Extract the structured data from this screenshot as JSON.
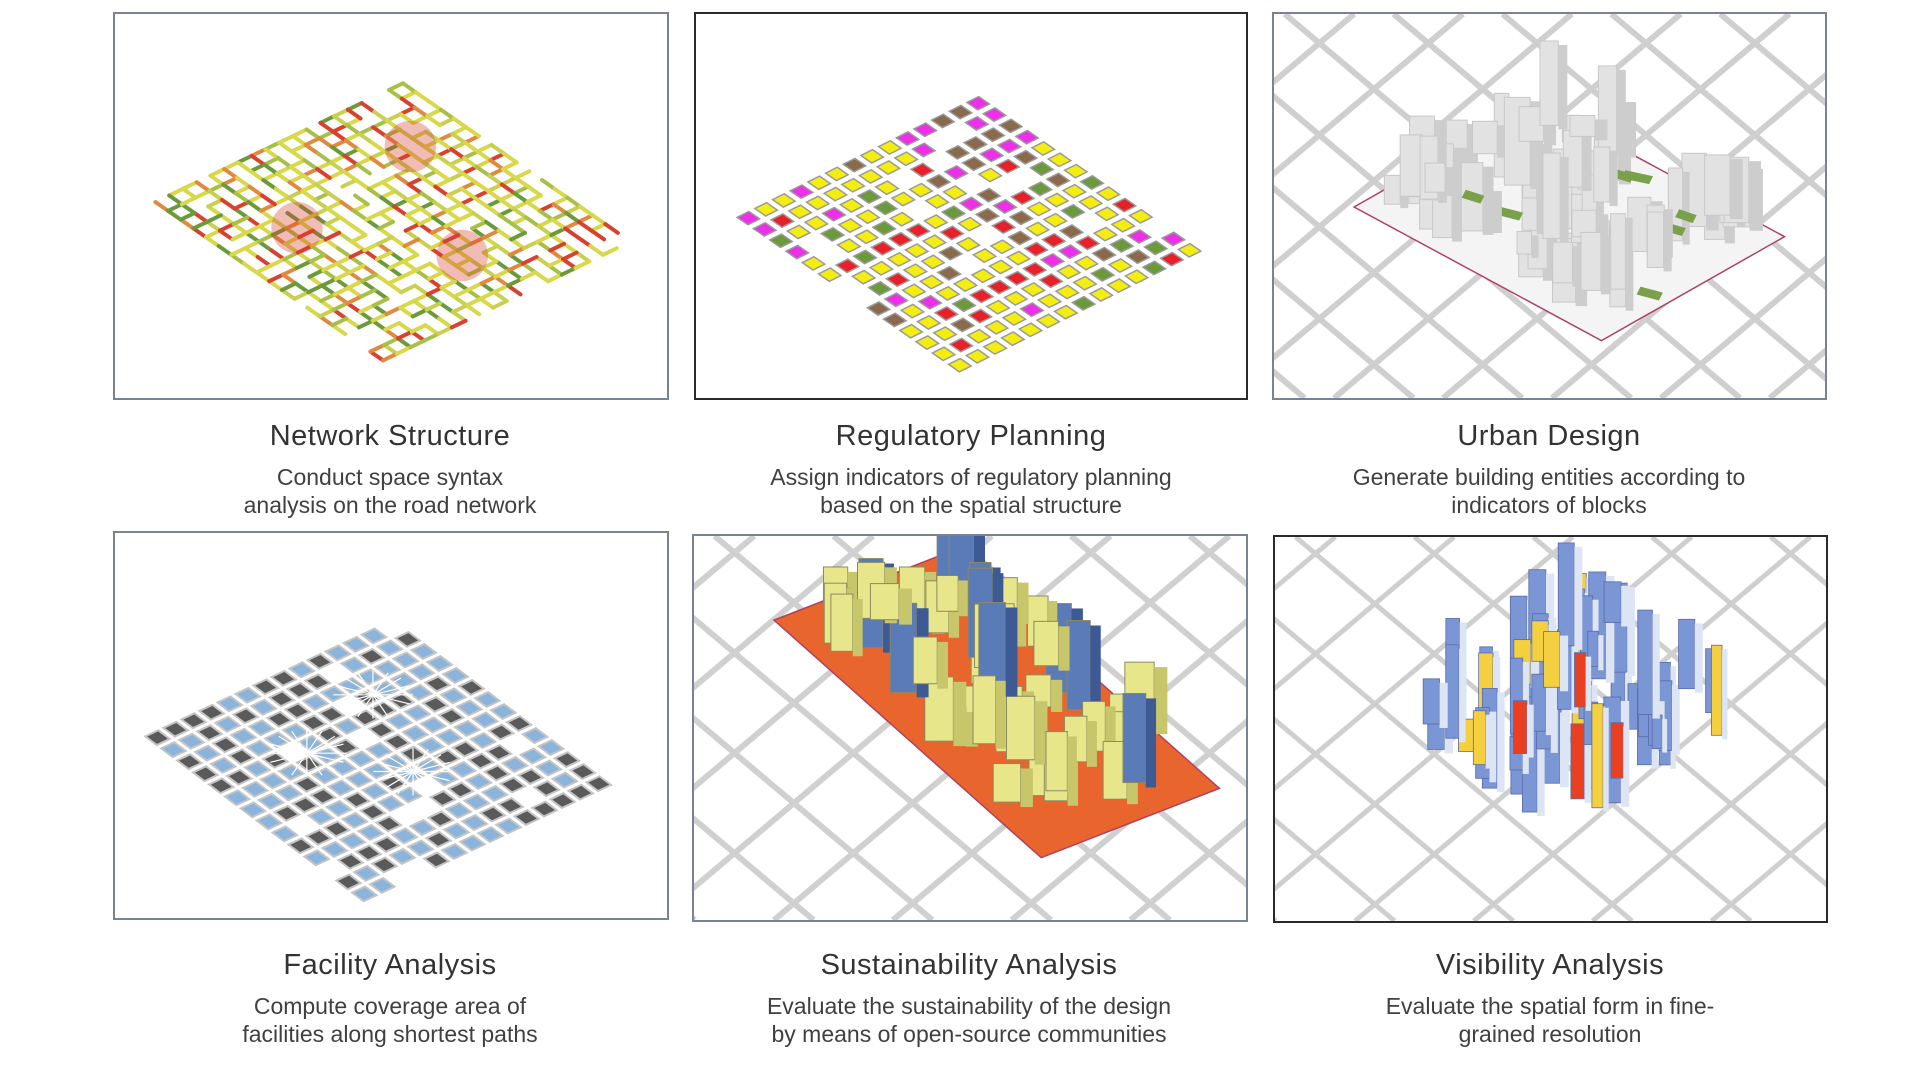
{
  "panels": [
    {
      "title": "Network Structure",
      "desc": [
        "Conduct space syntax",
        "analysis on the road network"
      ],
      "icon": "road-network-heatmap"
    },
    {
      "title": "Regulatory Planning",
      "desc": [
        "Assign indicators of regulatory planning",
        "based on the spatial structure"
      ],
      "icon": "land-use-map"
    },
    {
      "title": "Urban Design",
      "desc": [
        "Generate building entities according to",
        "indicators of blocks"
      ],
      "icon": "building-massing-model"
    },
    {
      "title": "Facility Analysis",
      "desc": [
        "Compute coverage area of",
        "facilities along shortest paths"
      ],
      "icon": "facility-coverage-map"
    },
    {
      "title": "Sustainability Analysis",
      "desc": [
        "Evaluate the sustainability of the design",
        "by means of open-source communities"
      ],
      "icon": "sustainability-model"
    },
    {
      "title": "Visibility Analysis",
      "desc": [
        "Evaluate the spatial form in fine-",
        "grained resolution"
      ],
      "icon": "visibility-grid-model"
    }
  ],
  "colors": {
    "frame_soft": "#7a8296",
    "frame_dark": "#2a2a2a",
    "road_green": "#6a9a3a",
    "road_yellow": "#d8d84a",
    "road_orange": "#e08a40",
    "road_red": "#d84030",
    "lu_yellow": "#f4ee10",
    "lu_red": "#e8202a",
    "lu_magenta": "#ee2ee8",
    "lu_brown": "#8a6a4a",
    "lu_green": "#6a9a3a",
    "building_gray": "#e2e2e2",
    "green_space": "#7aa04a",
    "block_dark": "#5a5a5a",
    "coverage_blue": "#8ab4dc",
    "bld_yellow": "#e8e68a",
    "bld_blue": "#5a7ab8",
    "ground_orange": "#e8662e",
    "vis_blue": "#7a96d4",
    "vis_yellow": "#f4d040",
    "vis_red": "#e84020"
  }
}
